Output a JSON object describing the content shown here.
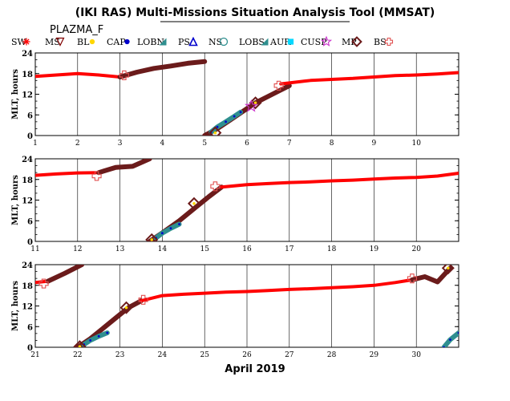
{
  "chart_data": {
    "type": "scatter",
    "title": "(IKI RAS) Multi-Missions Situation Analysis Tool (MMSAT)",
    "subtitle": "PLAZMA_F",
    "xlabel": "April 2019",
    "ylabel": "MLT, hours",
    "legend": [
      {
        "name": "SW",
        "symbol": "cross",
        "color": "#ff0000"
      },
      {
        "name": "MS",
        "symbol": "triangle-down",
        "color": "#800000"
      },
      {
        "name": "BL",
        "symbol": "dot",
        "color": "#ffd700"
      },
      {
        "name": "CAP",
        "symbol": "dot",
        "color": "#0000cc"
      },
      {
        "name": "LOBN",
        "symbol": "triangle",
        "color": "#2f8f8f"
      },
      {
        "name": "PS",
        "symbol": "triangle-open",
        "color": "#0000cc"
      },
      {
        "name": "NS",
        "symbol": "circle-open",
        "color": "#2f8f8f"
      },
      {
        "name": "LOBS",
        "symbol": "triangle",
        "color": "#2f8f8f"
      },
      {
        "name": "AUR",
        "symbol": "square",
        "color": "#00d8ff"
      },
      {
        "name": "CUSP",
        "symbol": "star",
        "color": "#cc33cc"
      },
      {
        "name": "MP",
        "symbol": "diamond",
        "color": "#6b1b1b"
      },
      {
        "name": "BS",
        "symbol": "square-cross",
        "color": "#e05050"
      }
    ],
    "panels": [
      {
        "xlim": [
          1,
          11
        ],
        "ylim": [
          0,
          24
        ],
        "xticks": [
          "1",
          "2",
          "3",
          "4",
          "5",
          "6",
          "7",
          "8",
          "9",
          "10"
        ],
        "yticks": [
          "0",
          "6",
          "12",
          "18",
          "24"
        ],
        "series": [
          {
            "region": "SW",
            "color": "#ff0000",
            "x": [
              1.0,
              1.5,
              2.0,
              2.5,
              3.0
            ],
            "y": [
              17.2,
              17.6,
              18.0,
              17.6,
              17.0
            ]
          },
          {
            "region": "MS",
            "color": "#6b1b1b",
            "x": [
              3.0,
              3.4,
              3.8,
              4.2,
              4.6,
              5.0
            ],
            "y": [
              17.0,
              18.4,
              19.5,
              20.2,
              21.0,
              21.5
            ]
          },
          {
            "region": "MS",
            "color": "#6b1b1b",
            "x": [
              5.0,
              5.3,
              5.6,
              5.9,
              6.2,
              6.6,
              7.0
            ],
            "y": [
              0.0,
              2.0,
              4.5,
              7.0,
              9.5,
              12.0,
              14.5
            ]
          },
          {
            "region": "LOBN",
            "color": "#2f8f8f",
            "x": [
              5.15,
              5.3,
              5.5,
              5.7,
              5.85
            ],
            "y": [
              1.0,
              2.5,
              4.0,
              5.6,
              6.8
            ]
          },
          {
            "region": "SW",
            "color": "#ff0000",
            "x": [
              6.8,
              7.5,
              8.0,
              8.5,
              9.0,
              9.5,
              10.0,
              10.5,
              11.0
            ],
            "y": [
              15.0,
              16.0,
              16.3,
              16.6,
              17.0,
              17.4,
              17.6,
              17.9,
              18.3
            ]
          }
        ],
        "crossings": [
          {
            "type": "BS",
            "x": 3.1,
            "y": 17.5
          },
          {
            "type": "MP",
            "x": 5.25,
            "y": 0.8
          },
          {
            "type": "MP",
            "x": 6.2,
            "y": 9.5
          },
          {
            "type": "CUSP",
            "x": 6.1,
            "y": 8.5
          },
          {
            "type": "BS",
            "x": 6.75,
            "y": 14.5
          }
        ]
      },
      {
        "xlim": [
          11,
          21
        ],
        "ylim": [
          0,
          24
        ],
        "xticks": [
          "11",
          "12",
          "13",
          "14",
          "15",
          "16",
          "17",
          "18",
          "19",
          "20"
        ],
        "yticks": [
          "0",
          "6",
          "12",
          "18",
          "24"
        ],
        "series": [
          {
            "region": "SW",
            "color": "#ff0000",
            "x": [
              11.0,
              11.5,
              12.0,
              12.5
            ],
            "y": [
              19.2,
              19.6,
              19.9,
              20.0
            ]
          },
          {
            "region": "MS",
            "color": "#6b1b1b",
            "x": [
              12.5,
              12.9,
              13.3,
              13.7
            ],
            "y": [
              20.0,
              21.5,
              21.8,
              24.0
            ]
          },
          {
            "region": "MS",
            "color": "#6b1b1b",
            "x": [
              13.7,
              14.0,
              14.4,
              14.8,
              15.1,
              15.4
            ],
            "y": [
              0.0,
              2.5,
              6.0,
              10.0,
              13.0,
              15.8
            ]
          },
          {
            "region": "LOBN",
            "color": "#2f8f8f",
            "x": [
              13.85,
              14.0,
              14.2,
              14.4
            ],
            "y": [
              1.0,
              2.4,
              3.8,
              5.0
            ]
          },
          {
            "region": "SW",
            "color": "#ff0000",
            "x": [
              15.4,
              16.0,
              16.5,
              17.0,
              17.5,
              18.0,
              18.5,
              19.0,
              19.5,
              20.0,
              20.5,
              21.0
            ],
            "y": [
              15.8,
              16.5,
              16.8,
              17.1,
              17.3,
              17.6,
              17.8,
              18.1,
              18.4,
              18.6,
              19.0,
              19.8
            ]
          }
        ],
        "crossings": [
          {
            "type": "BS",
            "x": 12.45,
            "y": 19.0
          },
          {
            "type": "MP",
            "x": 13.75,
            "y": 0.5
          },
          {
            "type": "MP",
            "x": 14.75,
            "y": 11.0
          },
          {
            "type": "BS",
            "x": 15.25,
            "y": 16.0
          }
        ]
      },
      {
        "xlim": [
          21,
          31
        ],
        "ylim": [
          0,
          24
        ],
        "xticks": [
          "21",
          "22",
          "23",
          "24",
          "25",
          "26",
          "27",
          "28",
          "29",
          "30"
        ],
        "yticks": [
          "0",
          "6",
          "12",
          "18",
          "24"
        ],
        "series": [
          {
            "region": "SW",
            "color": "#ff0000",
            "x": [
              21.0,
              21.3
            ],
            "y": [
              18.8,
              19.2
            ]
          },
          {
            "region": "MS",
            "color": "#6b1b1b",
            "x": [
              21.3,
              21.7,
              22.1
            ],
            "y": [
              19.2,
              21.5,
              24.0
            ]
          },
          {
            "region": "MS",
            "color": "#6b1b1b",
            "x": [
              22.0,
              22.3,
              22.6,
              22.9,
              23.2,
              23.5
            ],
            "y": [
              0.0,
              2.5,
              5.5,
              8.5,
              11.5,
              13.5
            ]
          },
          {
            "region": "LOBN",
            "color": "#2f8f8f",
            "x": [
              22.15,
              22.3,
              22.5,
              22.7
            ],
            "y": [
              0.8,
              2.0,
              3.2,
              4.2
            ]
          },
          {
            "region": "SW",
            "color": "#ff0000",
            "x": [
              23.5,
              24.0,
              24.5,
              25.0,
              25.5,
              26.0,
              26.5,
              27.0,
              27.5,
              28.0,
              28.5,
              29.0,
              29.5,
              29.9
            ],
            "y": [
              13.5,
              15.0,
              15.4,
              15.7,
              16.0,
              16.2,
              16.5,
              16.8,
              17.0,
              17.3,
              17.6,
              18.0,
              18.8,
              19.6
            ]
          },
          {
            "region": "MS",
            "color": "#6b1b1b",
            "x": [
              29.9,
              30.2,
              30.5,
              30.8
            ],
            "y": [
              19.6,
              20.5,
              19.0,
              23.0
            ]
          },
          {
            "region": "LOBS",
            "color": "#2f8f8f",
            "x": [
              30.65,
              30.8,
              31.0
            ],
            "y": [
              0.0,
              2.2,
              4.2
            ]
          }
        ],
        "crossings": [
          {
            "type": "BS",
            "x": 21.2,
            "y": 18.5
          },
          {
            "type": "MP",
            "x": 22.05,
            "y": 0.2
          },
          {
            "type": "MP",
            "x": 23.15,
            "y": 11.5
          },
          {
            "type": "BS",
            "x": 23.55,
            "y": 13.8
          },
          {
            "type": "BS",
            "x": 29.9,
            "y": 20.0
          },
          {
            "type": "MP",
            "x": 30.75,
            "y": 23.0
          }
        ]
      }
    ],
    "grid": true
  }
}
